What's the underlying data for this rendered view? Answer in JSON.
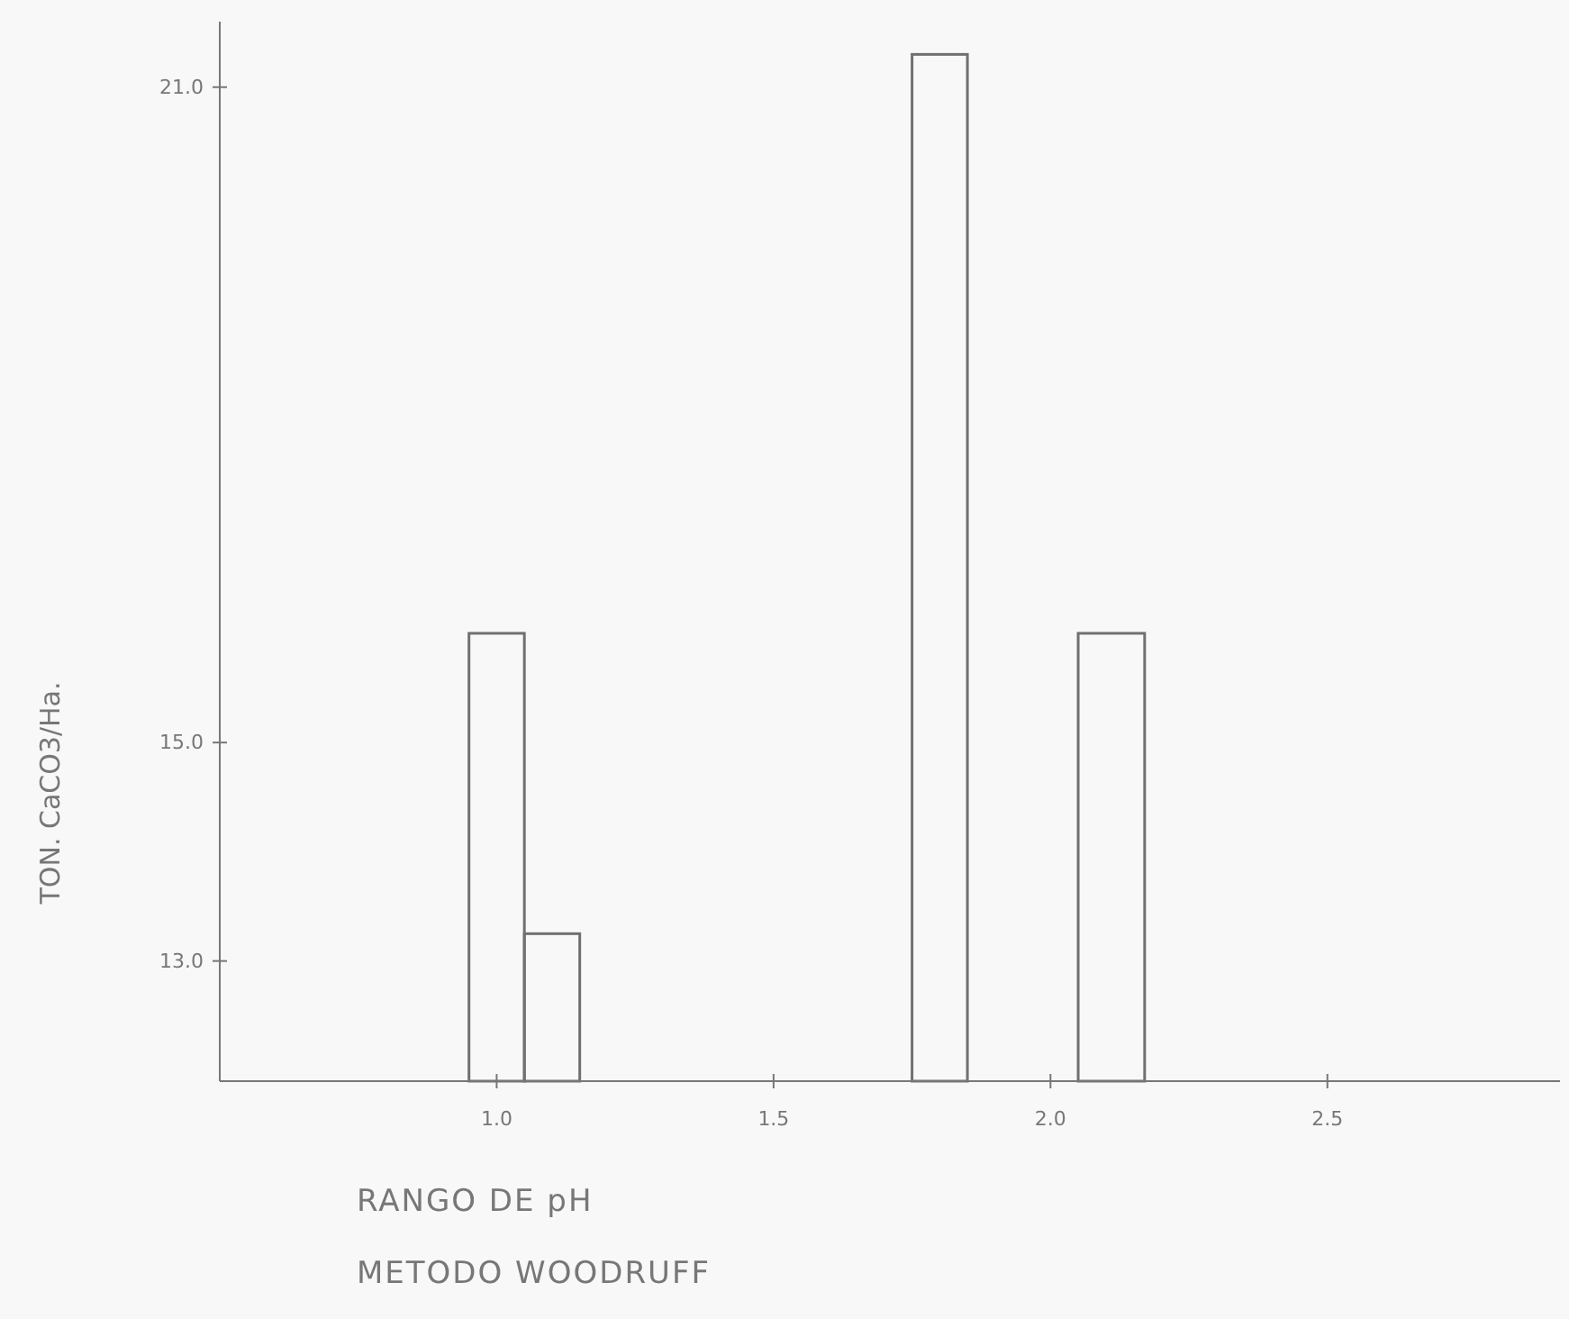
{
  "chart_data": {
    "type": "histogram",
    "bins": [
      0.95,
      1.05,
      1.15,
      1.75,
      1.85,
      2.05,
      2.17
    ],
    "values": [
      16.0,
      13.25,
      null,
      21.3,
      null,
      16.0
    ],
    "color": "#707070",
    "xlim": [
      0.5,
      2.92
    ],
    "xticks": [
      {
        "value": 1.0,
        "label": "1.0"
      },
      {
        "value": 1.5,
        "label": "1.5"
      },
      {
        "value": 2.0,
        "label": "2.0"
      },
      {
        "value": 2.5,
        "label": "2.5"
      }
    ],
    "ylim": [
      11.9,
      21.6
    ],
    "yticks": [
      {
        "value": 13.0,
        "label": "13.0"
      },
      {
        "value": 15.0,
        "label": "15.0"
      },
      {
        "value": 21.0,
        "label": "21.0"
      }
    ],
    "xlabel": "RANGO DE pH",
    "ylabel": "TON. CaCO3/Ha.",
    "annotations": [
      "METODO WOODRUFF"
    ],
    "grid": false
  }
}
